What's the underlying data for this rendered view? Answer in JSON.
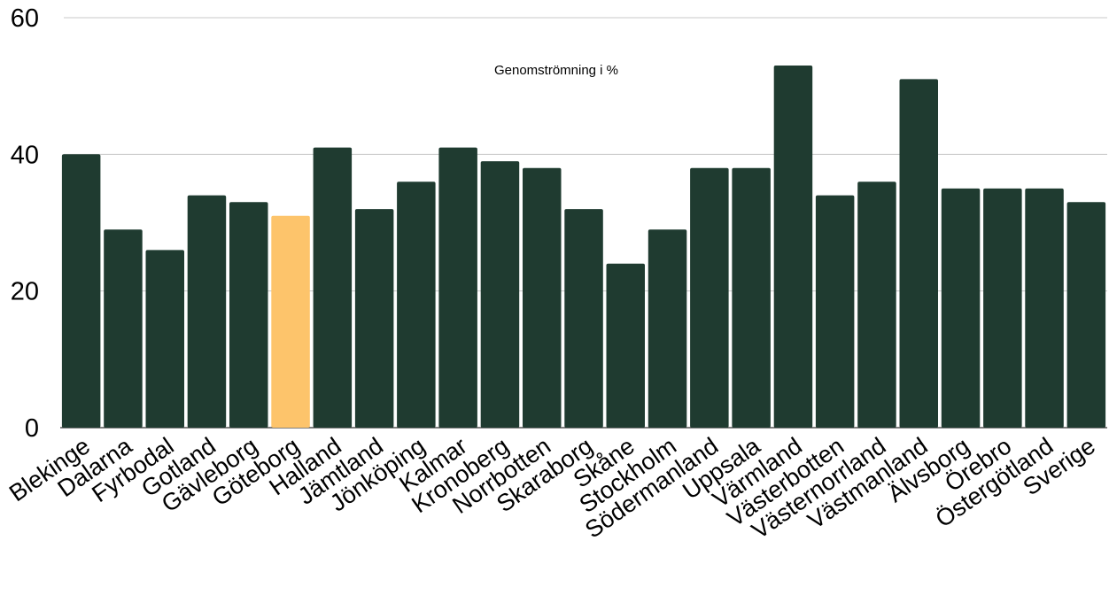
{
  "chart_data": {
    "type": "bar",
    "title": "Genomströmning i %",
    "xlabel": "",
    "ylabel": "",
    "ylim": [
      0,
      60
    ],
    "yticks": [
      0,
      20,
      40,
      60
    ],
    "grid": true,
    "legend": "none",
    "categories": [
      "Blekinge",
      "Dalarna",
      "Fyrbodal",
      "Gotland",
      "Gävleborg",
      "Göteborg",
      "Halland",
      "Jämtland",
      "Jönköping",
      "Kalmar",
      "Kronoberg",
      "Norrbotten",
      "Skaraborg",
      "Skåne",
      "Stockholm",
      "Södermanland",
      "Uppsala",
      "Värmland",
      "Västerbotten",
      "Västernorrland",
      "Västmanland",
      "Älvsborg",
      "Örebro",
      "Östergötland",
      "Sverige"
    ],
    "values": [
      40,
      29,
      26,
      34,
      33,
      31,
      41,
      32,
      36,
      41,
      39,
      38,
      32,
      24,
      29,
      38,
      38,
      53,
      34,
      36,
      51,
      35,
      35,
      35,
      33
    ],
    "highlight_category": "Göteborg",
    "colors": {
      "bar": "#1f3b30",
      "highlight": "#fdc46b",
      "grid": "#c8c8c8"
    }
  }
}
